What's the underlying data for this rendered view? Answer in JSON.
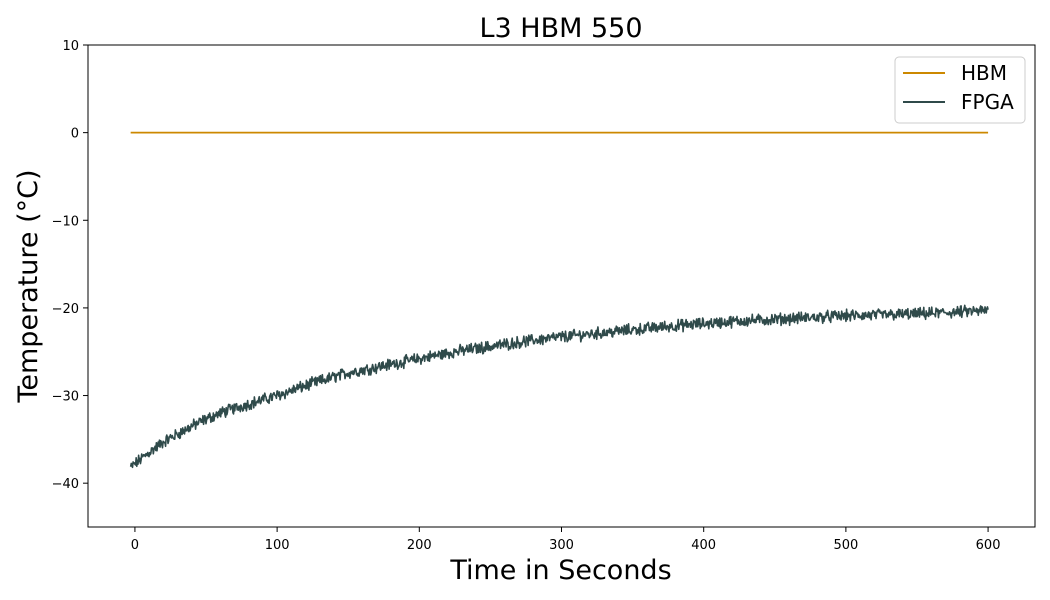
{
  "chart_data": {
    "type": "line",
    "title": "L3 HBM 550",
    "xlabel": "Time in Seconds",
    "ylabel": "Temperature (°C)",
    "xlim": [
      -33,
      633
    ],
    "ylim": [
      -45,
      10
    ],
    "xticks": [
      0,
      100,
      200,
      300,
      400,
      500,
      600
    ],
    "yticks": [
      -40,
      -30,
      -20,
      -10,
      0,
      10
    ],
    "xtick_labels": [
      "0",
      "100",
      "200",
      "300",
      "400",
      "500",
      "600"
    ],
    "ytick_labels": [
      "−40",
      "−30",
      "−20",
      "−10",
      "0",
      "10"
    ],
    "grid": false,
    "legend_position": "top-right",
    "series": [
      {
        "name": "HBM",
        "color": "#cc8800",
        "x": [
          -3,
          600
        ],
        "y": [
          0,
          0
        ]
      },
      {
        "name": "FPGA",
        "color": "#2f4a4a",
        "noisy": true,
        "x": [
          -3,
          0,
          10,
          20,
          30,
          40,
          50,
          60,
          75,
          100,
          125,
          150,
          175,
          200,
          225,
          250,
          275,
          300,
          325,
          350,
          375,
          400,
          425,
          450,
          475,
          500,
          525,
          550,
          575,
          600
        ],
        "y": [
          -38.2,
          -37.8,
          -36.5,
          -35.3,
          -34.4,
          -33.5,
          -32.7,
          -32.0,
          -31.2,
          -30.0,
          -28.6,
          -27.4,
          -26.6,
          -25.8,
          -25.0,
          -24.4,
          -23.8,
          -23.3,
          -22.9,
          -22.5,
          -22.1,
          -21.8,
          -21.5,
          -21.3,
          -21.1,
          -20.9,
          -20.8,
          -20.7,
          -20.5,
          -20.3
        ]
      }
    ]
  }
}
